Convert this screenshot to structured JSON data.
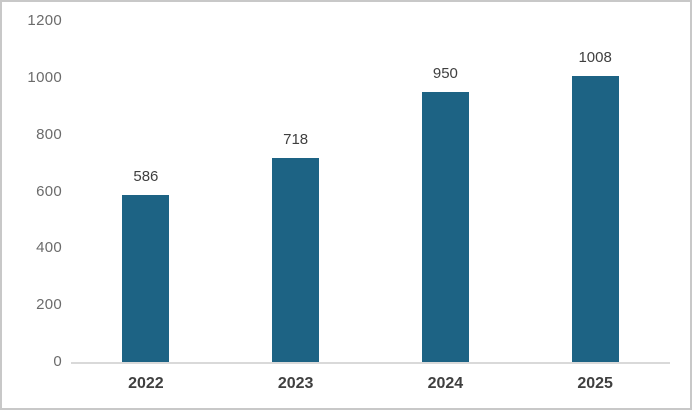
{
  "chart_data": {
    "type": "bar",
    "title": "",
    "xlabel": "",
    "ylabel": "",
    "categories": [
      "2022",
      "2023",
      "2024",
      "2025"
    ],
    "values": [
      586,
      718,
      950,
      1008
    ],
    "data_labels": [
      "586",
      "718",
      "950",
      "1008"
    ],
    "ylim": [
      0,
      1200
    ],
    "yticks": [
      0,
      200,
      400,
      600,
      800,
      1000,
      1200
    ],
    "ytick_labels": [
      "0",
      "200",
      "400",
      "600",
      "800",
      "1000",
      "1200"
    ],
    "grid": false,
    "legend_position": "none",
    "colors": {
      "bar_fill": "#1d6384",
      "axis_line": "#d9d9d9",
      "ytick_text": "#6b6b6b",
      "xtick_text": "#3f3f3f",
      "data_label_text": "#3f3f3f",
      "canvas_border": "#c8c8c8",
      "background": "#ffffff"
    }
  }
}
